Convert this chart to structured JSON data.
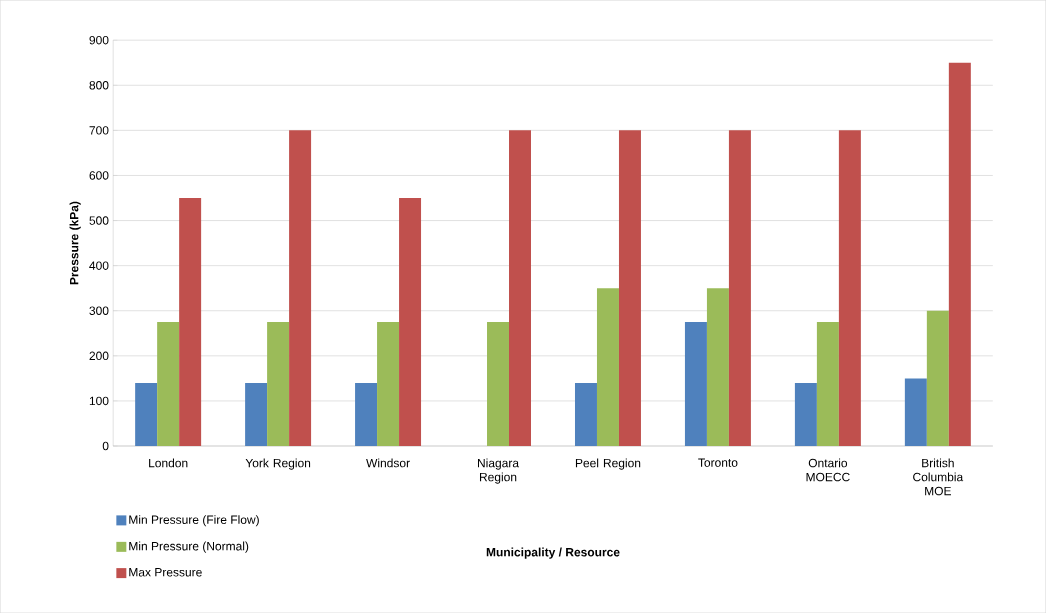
{
  "chart_data": {
    "type": "bar",
    "xlabel": "Municipality / Resource",
    "ylabel": "Pressure (kPa)",
    "categories": [
      "London",
      "York Region",
      "Windsor",
      "Niagara Region",
      "Peel Region",
      "Toronto",
      "Ontario MOECC",
      "British Columbia MOE"
    ],
    "series": [
      {
        "name": "Min Pressure (Fire Flow)",
        "color": "#4f81bd",
        "values": [
          140,
          140,
          140,
          null,
          140,
          275,
          140,
          150
        ]
      },
      {
        "name": "Min Pressure (Normal)",
        "color": "#9bbb59",
        "values": [
          275,
          275,
          275,
          275,
          350,
          350,
          275,
          300
        ]
      },
      {
        "name": "Max Pressure",
        "color": "#c0504d",
        "values": [
          550,
          700,
          550,
          700,
          700,
          700,
          700,
          850
        ]
      }
    ],
    "ylim": [
      0,
      900
    ],
    "yticks": [
      0,
      100,
      200,
      300,
      400,
      500,
      600,
      700,
      800,
      900
    ],
    "grid": "y",
    "legend": "bottom left"
  }
}
